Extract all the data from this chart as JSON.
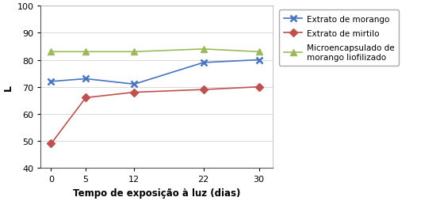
{
  "x": [
    0,
    5,
    12,
    22,
    30
  ],
  "morango": [
    72,
    73,
    71,
    79,
    80
  ],
  "mirtilo": [
    49,
    66,
    68,
    69,
    70
  ],
  "microencapsulado": [
    83,
    83,
    83,
    84,
    83
  ],
  "morango_color": "#4472C4",
  "mirtilo_color": "#C0504D",
  "micro_color": "#9BBB59",
  "xlabel": "Tempo de exposição à luz (dias)",
  "ylabel": "L",
  "ylim": [
    40,
    100
  ],
  "xlim": [
    -1.5,
    32
  ],
  "yticks": [
    40,
    50,
    60,
    70,
    80,
    90,
    100
  ],
  "xticks": [
    0,
    5,
    12,
    22,
    30
  ],
  "legend_morango": "Extrato de morango",
  "legend_mirtilo": "Extrato de mirtilo",
  "legend_micro": "Microencapsulado de\nmorango liofilizado",
  "bg_color": "#FFFFFF",
  "outer_border_color": "#AAAAAA"
}
